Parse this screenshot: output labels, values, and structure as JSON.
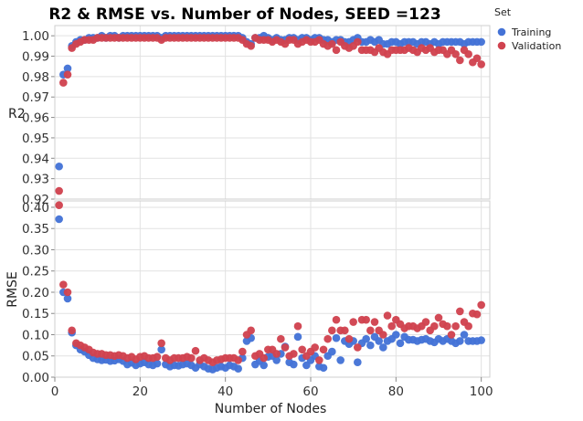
{
  "chart_data": {
    "type": "scatter",
    "title": "R2 & RMSE vs. Number of Nodes, SEED =123",
    "xlabel": "Number of Nodes",
    "xlim": [
      0,
      102
    ],
    "xticks": [
      0,
      20,
      40,
      60,
      80,
      100
    ],
    "legend": {
      "title": "Set",
      "placement": "top-right"
    },
    "colors": {
      "Training": "#4472d6",
      "Validation": "#d0434f"
    },
    "panels": [
      {
        "ylabel": "R2",
        "ylim": [
          0.92,
          1.005
        ],
        "yticks": [
          0.92,
          0.93,
          0.94,
          0.95,
          0.96,
          0.97,
          0.98,
          0.99,
          1.0
        ],
        "ytick_labels": [
          "0.92",
          "0.93",
          "0.94",
          "0.95",
          "0.96",
          "0.97",
          "0.98",
          "0.99",
          "1.00"
        ],
        "series": [
          {
            "name": "Training",
            "color": "#4472d6",
            "x": [
              1,
              2,
              3,
              4,
              5,
              6,
              7,
              8,
              9,
              10,
              11,
              12,
              13,
              14,
              15,
              16,
              17,
              18,
              19,
              20,
              21,
              22,
              23,
              24,
              25,
              26,
              27,
              28,
              29,
              30,
              31,
              32,
              33,
              34,
              35,
              36,
              37,
              38,
              39,
              40,
              41,
              42,
              43,
              44,
              45,
              46,
              47,
              48,
              49,
              50,
              51,
              52,
              53,
              54,
              55,
              56,
              57,
              58,
              59,
              60,
              61,
              62,
              63,
              64,
              65,
              66,
              67,
              68,
              69,
              70,
              71,
              72,
              73,
              74,
              75,
              76,
              77,
              78,
              79,
              80,
              81,
              82,
              83,
              84,
              85,
              86,
              87,
              88,
              89,
              90,
              91,
              92,
              93,
              94,
              95,
              96,
              97,
              98,
              99,
              100
            ],
            "y": [
              0.936,
              0.981,
              0.984,
              0.995,
              0.997,
              0.998,
              0.998,
              0.999,
              0.999,
              0.999,
              1.0,
              0.999,
              1.0,
              1.0,
              0.999,
              1.0,
              1.0,
              1.0,
              1.0,
              1.0,
              1.0,
              1.0,
              1.0,
              1.0,
              0.999,
              1.0,
              1.0,
              1.0,
              1.0,
              1.0,
              1.0,
              1.0,
              1.0,
              1.0,
              1.0,
              1.0,
              1.0,
              1.0,
              1.0,
              1.0,
              1.0,
              1.0,
              1.0,
              0.999,
              0.997,
              0.996,
              0.999,
              0.999,
              1.0,
              0.999,
              0.998,
              0.999,
              0.998,
              0.998,
              0.999,
              0.999,
              0.998,
              0.999,
              0.999,
              0.998,
              0.999,
              0.999,
              0.998,
              0.998,
              0.997,
              0.998,
              0.998,
              0.997,
              0.997,
              0.998,
              0.999,
              0.997,
              0.997,
              0.998,
              0.997,
              0.998,
              0.996,
              0.996,
              0.997,
              0.997,
              0.996,
              0.997,
              0.997,
              0.997,
              0.996,
              0.997,
              0.997,
              0.996,
              0.997,
              0.996,
              0.997,
              0.997,
              0.997,
              0.997,
              0.997,
              0.996,
              0.997,
              0.997,
              0.997,
              0.997
            ]
          },
          {
            "name": "Validation",
            "color": "#d0434f",
            "x": [
              1,
              2,
              3,
              4,
              5,
              6,
              7,
              8,
              9,
              10,
              11,
              12,
              13,
              14,
              15,
              16,
              17,
              18,
              19,
              20,
              21,
              22,
              23,
              24,
              25,
              26,
              27,
              28,
              29,
              30,
              31,
              32,
              33,
              34,
              35,
              36,
              37,
              38,
              39,
              40,
              41,
              42,
              43,
              44,
              45,
              46,
              47,
              48,
              49,
              50,
              51,
              52,
              53,
              54,
              55,
              56,
              57,
              58,
              59,
              60,
              61,
              62,
              63,
              64,
              65,
              66,
              67,
              68,
              69,
              70,
              71,
              72,
              73,
              74,
              75,
              76,
              77,
              78,
              79,
              80,
              81,
              82,
              83,
              84,
              85,
              86,
              87,
              88,
              89,
              90,
              91,
              92,
              93,
              94,
              95,
              96,
              97,
              98,
              99,
              100
            ],
            "y": [
              0.924,
              0.977,
              0.981,
              0.994,
              0.996,
              0.997,
              0.998,
              0.998,
              0.998,
              0.999,
              0.999,
              0.999,
              0.999,
              0.999,
              0.999,
              0.999,
              0.999,
              0.999,
              0.999,
              0.999,
              0.999,
              0.999,
              0.999,
              0.999,
              0.998,
              0.999,
              0.999,
              0.999,
              0.999,
              0.999,
              0.999,
              0.999,
              0.999,
              0.999,
              0.999,
              0.999,
              0.999,
              0.999,
              0.999,
              0.999,
              0.999,
              0.999,
              0.999,
              0.998,
              0.996,
              0.995,
              0.999,
              0.998,
              0.998,
              0.998,
              0.997,
              0.998,
              0.997,
              0.996,
              0.998,
              0.998,
              0.996,
              0.997,
              0.998,
              0.997,
              0.997,
              0.998,
              0.996,
              0.995,
              0.996,
              0.993,
              0.997,
              0.995,
              0.994,
              0.995,
              0.997,
              0.993,
              0.993,
              0.993,
              0.992,
              0.994,
              0.992,
              0.991,
              0.993,
              0.993,
              0.993,
              0.993,
              0.994,
              0.993,
              0.992,
              0.994,
              0.993,
              0.994,
              0.992,
              0.993,
              0.993,
              0.991,
              0.993,
              0.991,
              0.988,
              0.993,
              0.991,
              0.987,
              0.989,
              0.986
            ]
          }
        ]
      },
      {
        "ylabel": "RMSE",
        "ylim": [
          0.0,
          0.415
        ],
        "yticks": [
          0.0,
          0.05,
          0.1,
          0.15,
          0.2,
          0.25,
          0.3,
          0.35,
          0.4
        ],
        "ytick_labels": [
          "0.00",
          "0.05",
          "0.10",
          "0.15",
          "0.20",
          "0.25",
          "0.30",
          "0.35",
          "0.40"
        ],
        "series": [
          {
            "name": "Training",
            "color": "#4472d6",
            "x": [
              1,
              2,
              3,
              4,
              5,
              6,
              7,
              8,
              9,
              10,
              11,
              12,
              13,
              14,
              15,
              16,
              17,
              18,
              19,
              20,
              21,
              22,
              23,
              24,
              25,
              26,
              27,
              28,
              29,
              30,
              31,
              32,
              33,
              34,
              35,
              36,
              37,
              38,
              39,
              40,
              41,
              42,
              43,
              44,
              45,
              46,
              47,
              48,
              49,
              50,
              51,
              52,
              53,
              54,
              55,
              56,
              57,
              58,
              59,
              60,
              61,
              62,
              63,
              64,
              65,
              66,
              67,
              68,
              69,
              70,
              71,
              72,
              73,
              74,
              75,
              76,
              77,
              78,
              79,
              80,
              81,
              82,
              83,
              84,
              85,
              86,
              87,
              88,
              89,
              90,
              91,
              92,
              93,
              94,
              95,
              96,
              97,
              98,
              99,
              100
            ],
            "y": [
              0.372,
              0.2,
              0.185,
              0.105,
              0.075,
              0.065,
              0.06,
              0.052,
              0.045,
              0.042,
              0.04,
              0.041,
              0.038,
              0.039,
              0.042,
              0.038,
              0.03,
              0.034,
              0.028,
              0.032,
              0.035,
              0.03,
              0.028,
              0.032,
              0.065,
              0.03,
              0.025,
              0.028,
              0.027,
              0.03,
              0.032,
              0.028,
              0.022,
              0.03,
              0.025,
              0.02,
              0.018,
              0.022,
              0.025,
              0.022,
              0.028,
              0.025,
              0.02,
              0.045,
              0.085,
              0.092,
              0.03,
              0.038,
              0.028,
              0.048,
              0.05,
              0.04,
              0.055,
              0.072,
              0.035,
              0.03,
              0.095,
              0.045,
              0.028,
              0.04,
              0.05,
              0.025,
              0.022,
              0.05,
              0.06,
              0.092,
              0.04,
              0.085,
              0.078,
              0.085,
              0.035,
              0.08,
              0.09,
              0.075,
              0.095,
              0.085,
              0.07,
              0.085,
              0.09,
              0.1,
              0.08,
              0.095,
              0.088,
              0.088,
              0.085,
              0.088,
              0.09,
              0.085,
              0.082,
              0.09,
              0.085,
              0.09,
              0.085,
              0.08,
              0.085,
              0.1,
              0.085,
              0.085,
              0.085,
              0.087
            ]
          },
          {
            "name": "Validation",
            "color": "#d0434f",
            "x": [
              1,
              2,
              3,
              4,
              5,
              6,
              7,
              8,
              9,
              10,
              11,
              12,
              13,
              14,
              15,
              16,
              17,
              18,
              19,
              20,
              21,
              22,
              23,
              24,
              25,
              26,
              27,
              28,
              29,
              30,
              31,
              32,
              33,
              34,
              35,
              36,
              37,
              38,
              39,
              40,
              41,
              42,
              43,
              44,
              45,
              46,
              47,
              48,
              49,
              50,
              51,
              52,
              53,
              54,
              55,
              56,
              57,
              58,
              59,
              60,
              61,
              62,
              63,
              64,
              65,
              66,
              67,
              68,
              69,
              70,
              71,
              72,
              73,
              74,
              75,
              76,
              77,
              78,
              79,
              80,
              81,
              82,
              83,
              84,
              85,
              86,
              87,
              88,
              89,
              90,
              91,
              92,
              93,
              94,
              95,
              96,
              97,
              98,
              99,
              100
            ],
            "y": [
              0.405,
              0.218,
              0.2,
              0.11,
              0.08,
              0.075,
              0.07,
              0.065,
              0.058,
              0.055,
              0.055,
              0.052,
              0.052,
              0.05,
              0.052,
              0.05,
              0.045,
              0.048,
              0.042,
              0.048,
              0.05,
              0.045,
              0.045,
              0.048,
              0.08,
              0.045,
              0.04,
              0.045,
              0.045,
              0.045,
              0.048,
              0.045,
              0.062,
              0.04,
              0.045,
              0.04,
              0.035,
              0.04,
              0.042,
              0.045,
              0.045,
              0.045,
              0.04,
              0.06,
              0.1,
              0.11,
              0.05,
              0.055,
              0.045,
              0.065,
              0.065,
              0.055,
              0.09,
              0.07,
              0.05,
              0.055,
              0.12,
              0.065,
              0.05,
              0.06,
              0.07,
              0.04,
              0.065,
              0.09,
              0.11,
              0.135,
              0.11,
              0.11,
              0.09,
              0.13,
              0.07,
              0.135,
              0.135,
              0.11,
              0.13,
              0.11,
              0.1,
              0.145,
              0.12,
              0.135,
              0.125,
              0.115,
              0.12,
              0.12,
              0.115,
              0.12,
              0.13,
              0.11,
              0.12,
              0.14,
              0.125,
              0.12,
              0.1,
              0.12,
              0.155,
              0.13,
              0.12,
              0.15,
              0.148,
              0.17
            ]
          }
        ]
      }
    ]
  }
}
